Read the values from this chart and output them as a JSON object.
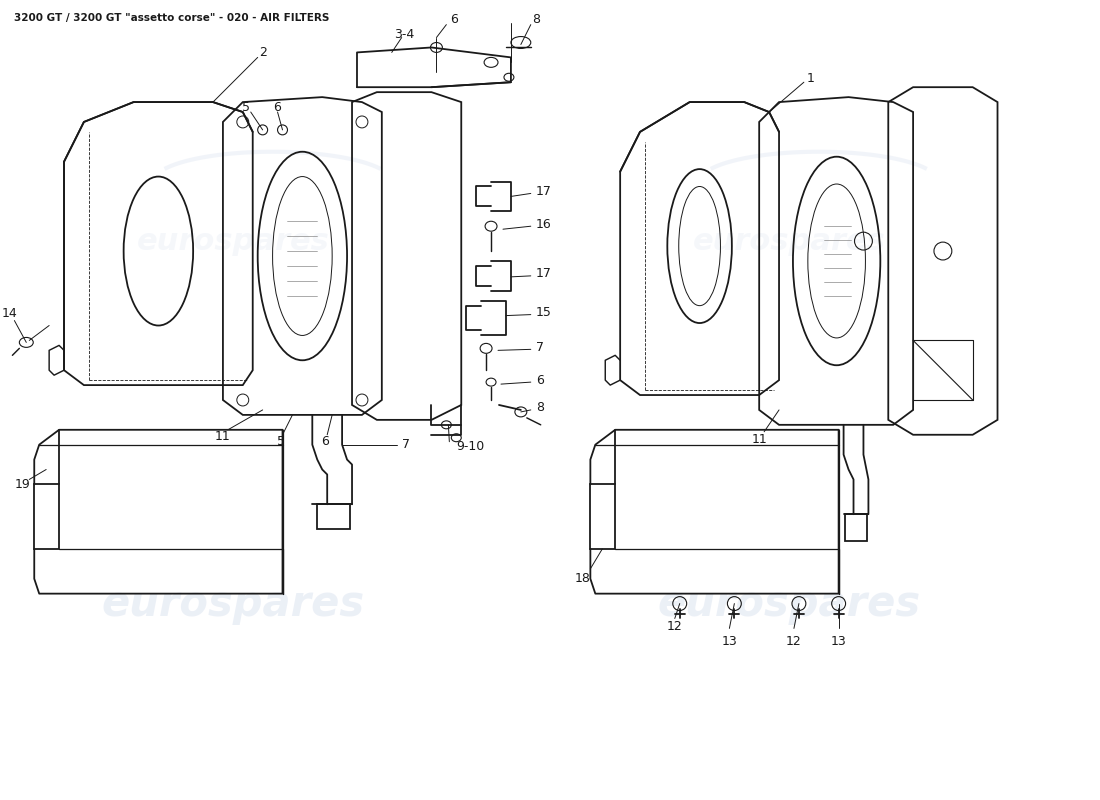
{
  "title": "3200 GT / 3200 GT \"assetto corse\" - 020 - AIR FILTERS",
  "title_fontsize": 7.5,
  "bg_color": "#ffffff",
  "line_color": "#1a1a1a",
  "line_width": 1.3,
  "thin_lw": 0.7,
  "label_fontsize": 9,
  "watermark_color": "#c8d4e8",
  "watermark_alpha": 0.35,
  "watermark_text": "eurospares"
}
